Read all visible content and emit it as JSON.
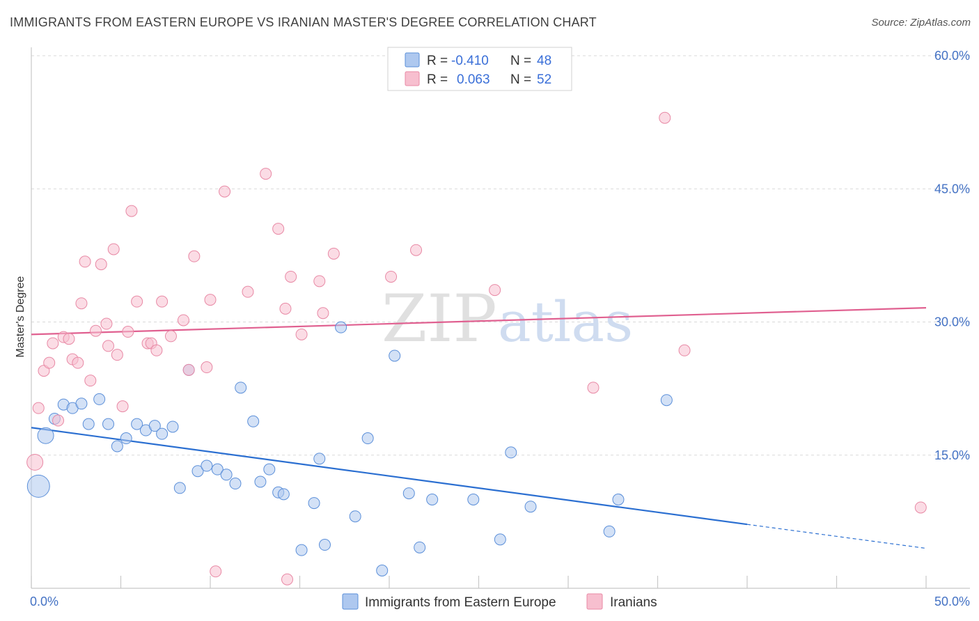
{
  "title": "IMMIGRANTS FROM EASTERN EUROPE VS IRANIAN MASTER'S DEGREE CORRELATION CHART",
  "source": "Source: ZipAtlas.com",
  "watermark": {
    "zip": "ZIP",
    "atlas": "atlas"
  },
  "colors": {
    "blue_fill": "#aec8ef",
    "blue_stroke": "#5b8fd9",
    "blue_line": "#2b6fd1",
    "pink_fill": "#f7bfcf",
    "pink_stroke": "#e889a5",
    "pink_line": "#e06090",
    "grid": "#d9d9d9",
    "tick_text": "#4472c4"
  },
  "chart_data": {
    "type": "scatter",
    "title": "IMMIGRANTS FROM EASTERN EUROPE VS IRANIAN MASTER'S DEGREE CORRELATION CHART",
    "xlabel": "",
    "ylabel": "Master's Degree",
    "xlim": [
      0,
      50
    ],
    "ylim": [
      0,
      60
    ],
    "x_tick_labels": [
      "0.0%",
      "50.0%"
    ],
    "y_ticks": [
      15,
      30,
      45,
      60
    ],
    "y_tick_labels": [
      "15.0%",
      "30.0%",
      "45.0%",
      "60.0%"
    ],
    "legend": [
      {
        "name": "Immigrants from Eastern Europe",
        "r_label": "R =",
        "r": "-0.410",
        "n_label": "N =",
        "n": "48"
      },
      {
        "name": "Iranians",
        "r_label": "R =",
        "r": "0.063",
        "n_label": "N =",
        "n": "52"
      }
    ],
    "series": [
      {
        "name": "Immigrants from Eastern Europe",
        "color": "blue",
        "trend": {
          "x0": 0,
          "y0": 18.1,
          "x1": 40,
          "y1": 7.2,
          "dash_to_x": 50,
          "dash_to_y": 4.5
        },
        "points": [
          [
            0.4,
            11.5,
            3
          ],
          [
            0.8,
            17.2,
            2
          ],
          [
            1.3,
            19.1,
            1
          ],
          [
            1.8,
            20.7,
            1
          ],
          [
            2.3,
            20.3,
            1
          ],
          [
            2.8,
            20.8,
            1
          ],
          [
            3.2,
            18.5,
            1
          ],
          [
            3.8,
            21.3,
            1
          ],
          [
            4.3,
            18.5,
            1
          ],
          [
            4.8,
            16.0,
            1
          ],
          [
            5.3,
            16.9,
            1
          ],
          [
            5.9,
            18.5,
            1
          ],
          [
            6.4,
            17.8,
            1
          ],
          [
            6.9,
            18.3,
            1
          ],
          [
            7.3,
            17.4,
            1
          ],
          [
            7.9,
            18.2,
            1
          ],
          [
            8.3,
            11.3,
            1
          ],
          [
            8.8,
            24.6,
            1
          ],
          [
            9.3,
            13.2,
            1
          ],
          [
            9.8,
            13.8,
            1
          ],
          [
            10.4,
            13.4,
            1
          ],
          [
            10.9,
            12.8,
            1
          ],
          [
            11.4,
            11.8,
            1
          ],
          [
            11.7,
            22.6,
            1
          ],
          [
            12.4,
            18.8,
            1
          ],
          [
            12.8,
            12.0,
            1
          ],
          [
            13.3,
            13.4,
            1
          ],
          [
            13.8,
            10.8,
            1
          ],
          [
            14.1,
            10.6,
            1
          ],
          [
            15.1,
            4.3,
            1
          ],
          [
            15.8,
            9.6,
            1
          ],
          [
            16.1,
            14.6,
            1
          ],
          [
            16.4,
            4.9,
            1
          ],
          [
            17.3,
            29.4,
            1
          ],
          [
            18.1,
            8.1,
            1
          ],
          [
            18.8,
            16.9,
            1
          ],
          [
            19.6,
            2.0,
            1
          ],
          [
            20.3,
            26.2,
            1
          ],
          [
            21.1,
            10.7,
            1
          ],
          [
            21.7,
            4.6,
            1
          ],
          [
            22.4,
            10.0,
            1
          ],
          [
            24.7,
            10.0,
            1
          ],
          [
            26.2,
            5.5,
            1
          ],
          [
            26.8,
            15.3,
            1
          ],
          [
            27.9,
            9.2,
            1
          ],
          [
            32.3,
            6.4,
            1
          ],
          [
            32.8,
            10.0,
            1
          ],
          [
            35.5,
            21.2,
            1
          ]
        ]
      },
      {
        "name": "Iranians",
        "color": "pink",
        "trend": {
          "x0": 0,
          "y0": 28.6,
          "x1": 50,
          "y1": 31.6
        },
        "points": [
          [
            0.2,
            14.2,
            2
          ],
          [
            0.4,
            20.3,
            1
          ],
          [
            0.7,
            24.5,
            1
          ],
          [
            1.0,
            25.4,
            1
          ],
          [
            1.2,
            27.6,
            1
          ],
          [
            1.5,
            18.9,
            1
          ],
          [
            1.8,
            28.3,
            1
          ],
          [
            2.1,
            28.1,
            1
          ],
          [
            2.3,
            25.8,
            1
          ],
          [
            2.6,
            25.4,
            1
          ],
          [
            2.8,
            32.1,
            1
          ],
          [
            3.0,
            36.8,
            1
          ],
          [
            3.3,
            23.4,
            1
          ],
          [
            3.6,
            29.0,
            1
          ],
          [
            3.9,
            36.5,
            1
          ],
          [
            4.2,
            29.8,
            1
          ],
          [
            4.3,
            27.3,
            1
          ],
          [
            4.6,
            38.2,
            1
          ],
          [
            4.8,
            26.3,
            1
          ],
          [
            5.1,
            20.5,
            1
          ],
          [
            5.4,
            28.9,
            1
          ],
          [
            5.6,
            42.5,
            1
          ],
          [
            5.9,
            32.3,
            1
          ],
          [
            6.5,
            27.6,
            1
          ],
          [
            6.7,
            27.6,
            1
          ],
          [
            7.0,
            26.8,
            1
          ],
          [
            7.3,
            32.3,
            1
          ],
          [
            7.8,
            28.4,
            1
          ],
          [
            8.5,
            30.2,
            1
          ],
          [
            8.8,
            24.6,
            1
          ],
          [
            9.1,
            37.4,
            1
          ],
          [
            9.8,
            24.9,
            1
          ],
          [
            10.0,
            32.5,
            1
          ],
          [
            10.3,
            1.9,
            1
          ],
          [
            10.8,
            44.7,
            1
          ],
          [
            12.1,
            33.4,
            1
          ],
          [
            13.1,
            46.7,
            1
          ],
          [
            13.8,
            40.5,
            1
          ],
          [
            14.2,
            31.5,
            1
          ],
          [
            14.3,
            1.0,
            1
          ],
          [
            14.5,
            35.1,
            1
          ],
          [
            15.1,
            28.6,
            1
          ],
          [
            16.1,
            34.6,
            1
          ],
          [
            16.3,
            31.0,
            1
          ],
          [
            16.9,
            37.7,
            1
          ],
          [
            20.1,
            35.1,
            1
          ],
          [
            21.5,
            38.1,
            1
          ],
          [
            25.9,
            33.6,
            1
          ],
          [
            31.4,
            22.6,
            1
          ],
          [
            35.4,
            53.0,
            1
          ],
          [
            36.5,
            26.8,
            1
          ],
          [
            49.7,
            9.1,
            1
          ]
        ]
      }
    ]
  }
}
